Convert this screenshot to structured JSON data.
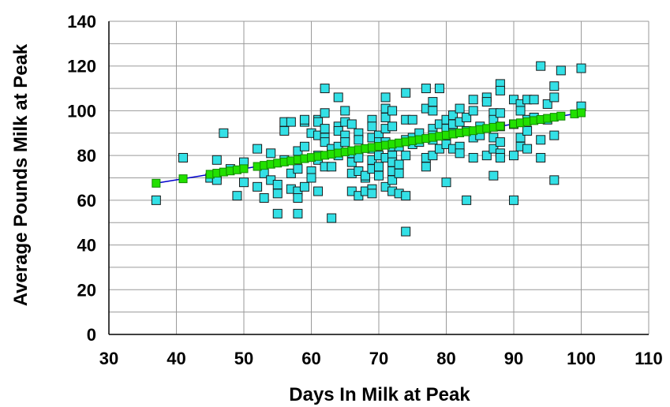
{
  "chart_data": {
    "type": "scatter",
    "title": "",
    "xlabel": "Days In Milk at Peak",
    "ylabel": "Average Pounds Milk at Peak",
    "xlim": [
      30,
      110
    ],
    "ylim": [
      0,
      140
    ],
    "x_ticks": [
      30,
      40,
      50,
      60,
      70,
      80,
      90,
      100,
      110
    ],
    "y_ticks": [
      0,
      20,
      40,
      60,
      80,
      100,
      120,
      140
    ],
    "grid": true,
    "legend": "none",
    "colors": {
      "observed": "#33e0e6",
      "observed_edge": "#1a1a1a",
      "predicted": "#22e000",
      "trend_line": "#0000cc",
      "grid": "#9a9a9a"
    },
    "series": [
      {
        "kind": "observed",
        "points": [
          [
            37,
            60
          ],
          [
            41,
            79
          ],
          [
            45,
            70
          ],
          [
            46,
            78
          ],
          [
            46,
            71
          ],
          [
            46,
            69
          ],
          [
            47,
            90
          ],
          [
            48,
            74
          ],
          [
            49,
            62
          ],
          [
            50,
            68
          ],
          [
            50,
            77
          ],
          [
            52,
            83
          ],
          [
            52,
            66
          ],
          [
            53,
            61
          ],
          [
            53,
            72
          ],
          [
            54,
            69
          ],
          [
            54,
            81
          ],
          [
            55,
            54
          ],
          [
            55,
            63
          ],
          [
            55,
            67
          ],
          [
            56,
            95
          ],
          [
            56,
            91
          ],
          [
            56,
            78
          ],
          [
            57,
            65
          ],
          [
            57,
            95
          ],
          [
            57,
            72
          ],
          [
            58,
            82
          ],
          [
            58,
            64
          ],
          [
            58,
            61
          ],
          [
            58,
            54
          ],
          [
            58,
            74
          ],
          [
            59,
            95
          ],
          [
            59,
            84
          ],
          [
            59,
            66
          ],
          [
            59,
            96
          ],
          [
            60,
            73
          ],
          [
            60,
            70
          ],
          [
            60,
            90
          ],
          [
            61,
            96
          ],
          [
            61,
            95
          ],
          [
            61,
            89
          ],
          [
            61,
            78
          ],
          [
            61,
            64
          ],
          [
            61,
            80
          ],
          [
            62,
            110
          ],
          [
            62,
            99
          ],
          [
            62,
            88
          ],
          [
            62,
            92
          ],
          [
            62,
            75
          ],
          [
            62,
            86
          ],
          [
            63,
            52
          ],
          [
            63,
            81
          ],
          [
            63,
            75
          ],
          [
            63,
            83
          ],
          [
            64,
            93
          ],
          [
            64,
            106
          ],
          [
            64,
            91
          ],
          [
            64,
            84
          ],
          [
            64,
            80
          ],
          [
            65,
            95
          ],
          [
            65,
            100
          ],
          [
            65,
            89
          ],
          [
            65,
            86
          ],
          [
            66,
            94
          ],
          [
            66,
            81
          ],
          [
            66,
            72
          ],
          [
            66,
            64
          ],
          [
            66,
            77
          ],
          [
            67,
            90
          ],
          [
            67,
            87
          ],
          [
            67,
            82
          ],
          [
            67,
            79
          ],
          [
            67,
            73
          ],
          [
            67,
            62
          ],
          [
            68,
            70
          ],
          [
            68,
            71
          ],
          [
            68,
            64
          ],
          [
            69,
            96
          ],
          [
            69,
            93
          ],
          [
            69,
            88
          ],
          [
            69,
            83
          ],
          [
            69,
            76
          ],
          [
            69,
            78
          ],
          [
            69,
            74
          ],
          [
            69,
            65
          ],
          [
            69,
            63
          ],
          [
            70,
            89
          ],
          [
            70,
            86
          ],
          [
            70,
            80
          ],
          [
            70,
            75
          ],
          [
            70,
            71
          ],
          [
            71,
            106
          ],
          [
            71,
            101
          ],
          [
            71,
            97
          ],
          [
            71,
            92
          ],
          [
            71,
            86
          ],
          [
            71,
            79
          ],
          [
            71,
            66
          ],
          [
            72,
            100
          ],
          [
            72,
            93
          ],
          [
            72,
            84
          ],
          [
            72,
            80
          ],
          [
            72,
            77
          ],
          [
            72,
            73
          ],
          [
            72,
            69
          ],
          [
            72,
            64
          ],
          [
            73,
            84
          ],
          [
            73,
            76
          ],
          [
            73,
            72
          ],
          [
            73,
            63
          ],
          [
            74,
            108
          ],
          [
            74,
            96
          ],
          [
            74,
            87
          ],
          [
            74,
            80
          ],
          [
            74,
            62
          ],
          [
            74,
            46
          ],
          [
            75,
            96
          ],
          [
            75,
            88
          ],
          [
            75,
            85
          ],
          [
            76,
            90
          ],
          [
            76,
            86
          ],
          [
            77,
            110
          ],
          [
            77,
            101
          ],
          [
            77,
            75
          ],
          [
            77,
            79
          ],
          [
            78,
            104
          ],
          [
            78,
            100
          ],
          [
            78,
            92
          ],
          [
            78,
            89
          ],
          [
            78,
            87
          ],
          [
            78,
            80
          ],
          [
            79,
            110
          ],
          [
            79,
            94
          ],
          [
            79,
            83
          ],
          [
            80,
            92
          ],
          [
            80,
            96
          ],
          [
            80,
            88
          ],
          [
            80,
            85
          ],
          [
            80,
            68
          ],
          [
            81,
            98
          ],
          [
            81,
            94
          ],
          [
            81,
            90
          ],
          [
            81,
            83
          ],
          [
            82,
            101
          ],
          [
            82,
            95
          ],
          [
            82,
            84
          ],
          [
            82,
            81
          ],
          [
            83,
            97
          ],
          [
            83,
            91
          ],
          [
            83,
            60
          ],
          [
            84,
            105
          ],
          [
            84,
            100
          ],
          [
            84,
            88
          ],
          [
            84,
            79
          ],
          [
            85,
            93
          ],
          [
            85,
            89
          ],
          [
            86,
            106
          ],
          [
            86,
            104
          ],
          [
            86,
            80
          ],
          [
            87,
            99
          ],
          [
            87,
            96
          ],
          [
            87,
            88
          ],
          [
            87,
            83
          ],
          [
            87,
            71
          ],
          [
            88,
            112
          ],
          [
            88,
            109
          ],
          [
            88,
            99
          ],
          [
            88,
            93
          ],
          [
            88,
            86
          ],
          [
            88,
            81
          ],
          [
            88,
            79
          ],
          [
            90,
            105
          ],
          [
            90,
            94
          ],
          [
            90,
            80
          ],
          [
            90,
            60
          ],
          [
            91,
            103
          ],
          [
            91,
            100
          ],
          [
            91,
            88
          ],
          [
            91,
            84
          ],
          [
            92,
            105
          ],
          [
            92,
            96
          ],
          [
            92,
            91
          ],
          [
            92,
            83
          ],
          [
            93,
            105
          ],
          [
            93,
            97
          ],
          [
            94,
            120
          ],
          [
            94,
            87
          ],
          [
            94,
            79
          ],
          [
            95,
            103
          ],
          [
            95,
            96
          ],
          [
            96,
            111
          ],
          [
            96,
            106
          ],
          [
            96,
            89
          ],
          [
            96,
            69
          ],
          [
            97,
            118
          ],
          [
            100,
            119
          ],
          [
            100,
            102
          ]
        ]
      },
      {
        "kind": "predicted",
        "points": [
          [
            37,
            67.6
          ],
          [
            41,
            69.6
          ],
          [
            45,
            71.6
          ],
          [
            46,
            72.1
          ],
          [
            47,
            72.6
          ],
          [
            48,
            73.1
          ],
          [
            49,
            73.6
          ],
          [
            50,
            74.1
          ],
          [
            52,
            75.1
          ],
          [
            53,
            75.6
          ],
          [
            54,
            76.1
          ],
          [
            55,
            76.6
          ],
          [
            56,
            77.1
          ],
          [
            57,
            77.6
          ],
          [
            58,
            78.1
          ],
          [
            59,
            78.6
          ],
          [
            60,
            79.1
          ],
          [
            61,
            79.6
          ],
          [
            62,
            80.1
          ],
          [
            63,
            80.6
          ],
          [
            64,
            81.1
          ],
          [
            65,
            81.6
          ],
          [
            66,
            82.1
          ],
          [
            67,
            82.6
          ],
          [
            68,
            83.1
          ],
          [
            69,
            83.6
          ],
          [
            70,
            84.1
          ],
          [
            71,
            84.6
          ],
          [
            72,
            85.1
          ],
          [
            73,
            85.6
          ],
          [
            74,
            86.1
          ],
          [
            75,
            86.6
          ],
          [
            76,
            87.1
          ],
          [
            77,
            87.6
          ],
          [
            78,
            88.1
          ],
          [
            79,
            88.6
          ],
          [
            80,
            89.1
          ],
          [
            81,
            89.6
          ],
          [
            82,
            90.1
          ],
          [
            83,
            90.6
          ],
          [
            84,
            91.1
          ],
          [
            85,
            91.6
          ],
          [
            86,
            92.1
          ],
          [
            87,
            92.6
          ],
          [
            88,
            93.1
          ],
          [
            90,
            94.1
          ],
          [
            91,
            94.6
          ],
          [
            92,
            95.1
          ],
          [
            93,
            95.6
          ],
          [
            94,
            96.1
          ],
          [
            95,
            96.6
          ],
          [
            96,
            97.1
          ],
          [
            97,
            97.6
          ],
          [
            99,
            98.6
          ],
          [
            100,
            99.1
          ]
        ]
      }
    ]
  }
}
